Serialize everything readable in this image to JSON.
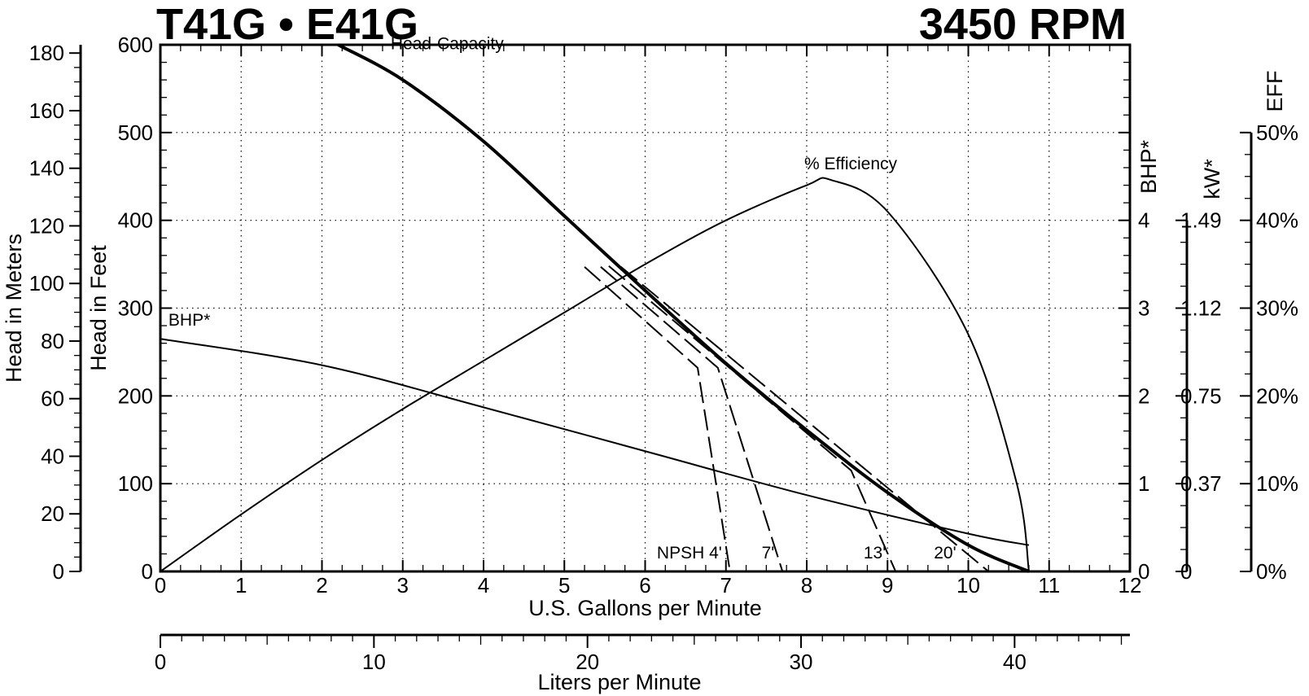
{
  "header": {
    "title_left": "T41G • E41G",
    "title_right": "3450 RPM"
  },
  "chart_data": {
    "type": "line",
    "title": "T41G • E41G",
    "subtitle": "3450 RPM",
    "grid": true,
    "x_axis": {
      "label": "U.S. Gallons per Minute",
      "range": [
        0,
        12
      ],
      "ticks": [
        "0",
        "1",
        "2",
        "3",
        "4",
        "5",
        "6",
        "7",
        "8",
        "9",
        "10",
        "11",
        "12"
      ]
    },
    "x2_axis": {
      "label": "Liters per Minute",
      "range": [
        0,
        45.4
      ],
      "ticks": [
        "0",
        "10",
        "20",
        "30",
        "40"
      ]
    },
    "y_axes": {
      "feet": {
        "label": "Head in Feet",
        "range": [
          0,
          600
        ],
        "ticks": [
          "0",
          "100",
          "200",
          "300",
          "400",
          "500",
          "600"
        ]
      },
      "meters": {
        "label": "Head in Meters",
        "range": [
          0,
          182.9
        ],
        "ticks": [
          "0",
          "20",
          "40",
          "60",
          "80",
          "100",
          "120",
          "140",
          "160",
          "180"
        ]
      },
      "bhp": {
        "label": "BHP*",
        "range": [
          0,
          4
        ],
        "ticks": [
          "0",
          "1",
          "2",
          "3",
          "4"
        ]
      },
      "kw": {
        "label": "kW*",
        "ticks": [
          "0",
          "0.37",
          "0.75",
          "1.12",
          "1.49"
        ]
      },
      "eff": {
        "label": "EFF",
        "range": [
          0,
          50
        ],
        "ticks": [
          "0%",
          "10%",
          "20%",
          "30%",
          "40%",
          "50%"
        ]
      }
    },
    "series": [
      {
        "name": "Head-Capacity",
        "axis": "feet",
        "x": [
          2.2,
          3,
          4,
          5,
          6,
          7,
          8,
          9,
          10,
          10.75
        ],
        "y": [
          600,
          560,
          490,
          405,
          320,
          237,
          161,
          90,
          30,
          0
        ]
      },
      {
        "name": "% Efficiency",
        "axis": "eff",
        "x": [
          0,
          1,
          2,
          3,
          4,
          5,
          6,
          7,
          8,
          8.3,
          9,
          10,
          10.6,
          10.75
        ],
        "y": [
          0,
          6.5,
          12.7,
          18.5,
          24,
          29.5,
          35,
          40,
          44,
          44.6,
          41,
          27,
          10,
          0
        ]
      },
      {
        "name": "BHP*",
        "axis": "bhp",
        "x": [
          0,
          2,
          4,
          6,
          8,
          10,
          10.75
        ],
        "y": [
          2.65,
          2.35,
          1.87,
          1.37,
          0.87,
          0.43,
          0.3
        ]
      },
      {
        "name": "NPSH 4'",
        "axis": "feet",
        "dashed": true,
        "x": [
          5.25,
          6.65,
          7.05
        ],
        "y": [
          347,
          232,
          0
        ]
      },
      {
        "name": "7'",
        "axis": "feet",
        "dashed": true,
        "x": [
          5.45,
          6.9,
          7.7
        ],
        "y": [
          347,
          232,
          0
        ]
      },
      {
        "name": "13'",
        "axis": "feet",
        "dashed": true,
        "x": [
          5.55,
          8.55,
          9.1
        ],
        "y": [
          348,
          115,
          0
        ]
      },
      {
        "name": "20'",
        "axis": "feet",
        "dashed": true,
        "x": [
          5.7,
          10.25
        ],
        "y": [
          347,
          0
        ]
      }
    ],
    "annotations": [
      "Head-Capacity",
      "% Efficiency",
      "BHP*",
      "NPSH 4'",
      "7'",
      "13'",
      "20'"
    ]
  }
}
